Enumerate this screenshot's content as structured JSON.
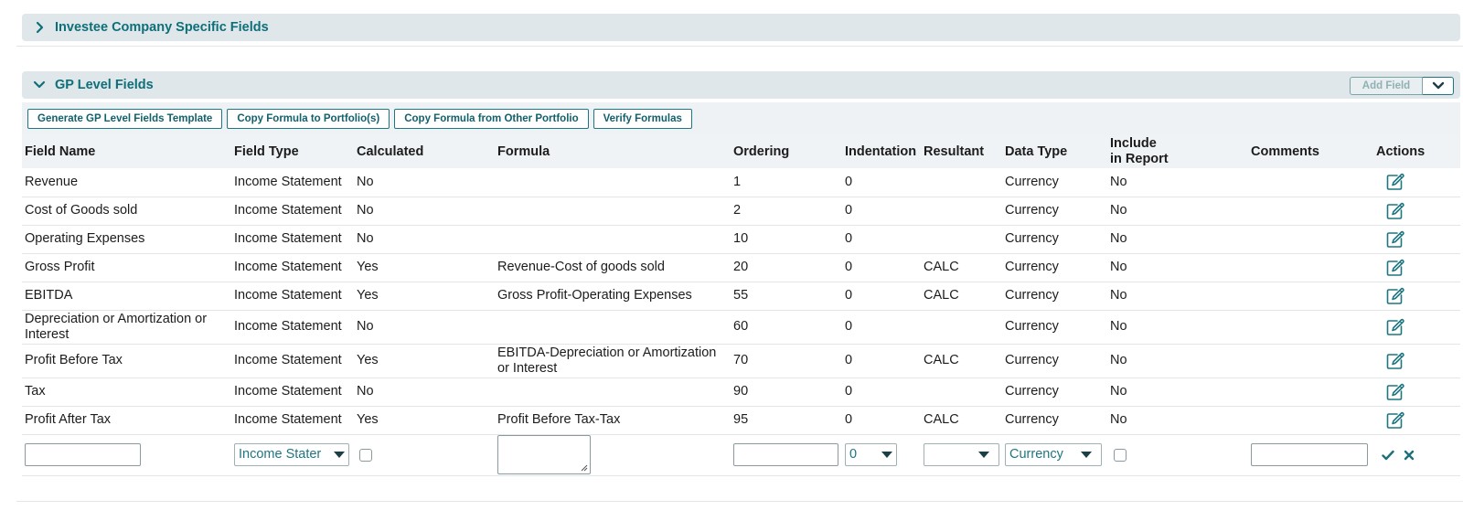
{
  "sections": {
    "investee": {
      "title": "Investee Company Specific Fields"
    },
    "gp": {
      "title": "GP Level Fields",
      "add_field_label": "Add Field"
    }
  },
  "toolbar": {
    "generate_template": "Generate GP Level Fields Template",
    "copy_to": "Copy Formula to Portfolio(s)",
    "copy_from": "Copy Formula from Other Portfolio",
    "verify": "Verify Formulas"
  },
  "table": {
    "headers": {
      "field_name": "Field Name",
      "field_type": "Field Type",
      "calculated": "Calculated",
      "formula": "Formula",
      "ordering": "Ordering",
      "indentation": "Indentation",
      "resultant": "Resultant",
      "data_type": "Data Type",
      "include_line1": "Include",
      "include_line2": "in Report",
      "comments": "Comments",
      "actions": "Actions"
    },
    "rows": [
      {
        "field_name": "Revenue",
        "field_type": "Income Statement",
        "calculated": "No",
        "formula": "",
        "ordering": "1",
        "indentation": "0",
        "resultant": "",
        "data_type": "Currency",
        "include": "No",
        "comments": ""
      },
      {
        "field_name": "Cost of Goods sold",
        "field_type": "Income Statement",
        "calculated": "No",
        "formula": "",
        "ordering": "2",
        "indentation": "0",
        "resultant": "",
        "data_type": "Currency",
        "include": "No",
        "comments": ""
      },
      {
        "field_name": "Operating Expenses",
        "field_type": "Income Statement",
        "calculated": "No",
        "formula": "",
        "ordering": "10",
        "indentation": "0",
        "resultant": "",
        "data_type": "Currency",
        "include": "No",
        "comments": ""
      },
      {
        "field_name": "Gross Profit",
        "field_type": "Income Statement",
        "calculated": "Yes",
        "formula": "Revenue-Cost of goods sold",
        "ordering": "20",
        "indentation": "0",
        "resultant": "CALC",
        "data_type": "Currency",
        "include": "No",
        "comments": ""
      },
      {
        "field_name": "EBITDA",
        "field_type": "Income Statement",
        "calculated": "Yes",
        "formula": "Gross Profit-Operating Expenses",
        "ordering": "55",
        "indentation": "0",
        "resultant": "CALC",
        "data_type": "Currency",
        "include": "No",
        "comments": ""
      },
      {
        "field_name": "Depreciation or Amortization or Interest",
        "field_type": "Income Statement",
        "calculated": "No",
        "formula": "",
        "ordering": "60",
        "indentation": "0",
        "resultant": "",
        "data_type": "Currency",
        "include": "No",
        "comments": ""
      },
      {
        "field_name": "Profit Before Tax",
        "field_type": "Income Statement",
        "calculated": "Yes",
        "formula": "EBITDA-Depreciation or Amortization or Interest",
        "ordering": "70",
        "indentation": "0",
        "resultant": "CALC",
        "data_type": "Currency",
        "include": "No",
        "comments": ""
      },
      {
        "field_name": "Tax",
        "field_type": "Income Statement",
        "calculated": "No",
        "formula": "",
        "ordering": "90",
        "indentation": "0",
        "resultant": "",
        "data_type": "Currency",
        "include": "No",
        "comments": ""
      },
      {
        "field_name": "Profit After Tax",
        "field_type": "Income Statement",
        "calculated": "Yes",
        "formula": "Profit Before Tax-Tax",
        "ordering": "95",
        "indentation": "0",
        "resultant": "CALC",
        "data_type": "Currency",
        "include": "No",
        "comments": ""
      }
    ],
    "new_row": {
      "field_type_value": "Income Stater",
      "indentation_value": "0",
      "resultant_value": "",
      "data_type_value": "Currency"
    }
  },
  "colors": {
    "accent": "#0e6f79",
    "header_bg": "#dfe7ea",
    "toolbar_bg": "#eef2f4",
    "table_header_bg": "#f0f3f5"
  }
}
